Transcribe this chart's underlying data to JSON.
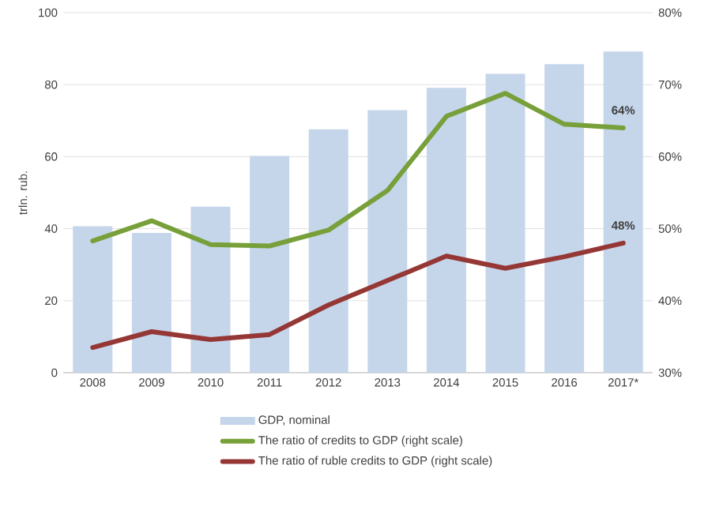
{
  "chart_data": {
    "type": "bar",
    "categories": [
      "2008",
      "2009",
      "2010",
      "2011",
      "2012",
      "2013",
      "2014",
      "2015",
      "2016",
      "2017*"
    ],
    "ylabel": "trln. rub.",
    "ylim": [
      0,
      100
    ],
    "yticks": [
      0,
      20,
      40,
      60,
      80,
      100
    ],
    "y2lim": [
      30,
      80
    ],
    "y2ticks": [
      {
        "value": 30,
        "label": "30%"
      },
      {
        "value": 40,
        "label": "40%"
      },
      {
        "value": 50,
        "label": "50%"
      },
      {
        "value": 60,
        "label": "60%"
      },
      {
        "value": 70,
        "label": "70%"
      },
      {
        "value": 80,
        "label": "80%"
      }
    ],
    "series": [
      {
        "name": "GDP, nominal",
        "color": "#c5d5ea",
        "values": [
          40.7,
          38.8,
          46.1,
          60.2,
          67.6,
          72.9,
          79.1,
          83.0,
          85.7,
          89.2
        ]
      },
      {
        "name": "The ratio of credits to GDP (right scale)",
        "type": "line",
        "axis": "y2",
        "color": "#77a03a",
        "values": [
          48.3,
          51.1,
          47.8,
          47.6,
          49.8,
          55.3,
          65.6,
          68.8,
          64.5,
          64
        ],
        "value_labels": [
          null,
          null,
          null,
          null,
          null,
          null,
          null,
          null,
          null,
          "64%"
        ]
      },
      {
        "name": "The ratio of ruble credits to GDP (right scale)",
        "type": "line",
        "axis": "y2",
        "color": "#953735",
        "values": [
          33.5,
          35.7,
          34.6,
          35.3,
          39.4,
          42.8,
          46.2,
          44.5,
          46.1,
          48
        ],
        "value_labels": [
          null,
          null,
          null,
          null,
          null,
          null,
          null,
          null,
          null,
          "48%"
        ]
      }
    ],
    "grid": "y",
    "legend": "bottom"
  }
}
